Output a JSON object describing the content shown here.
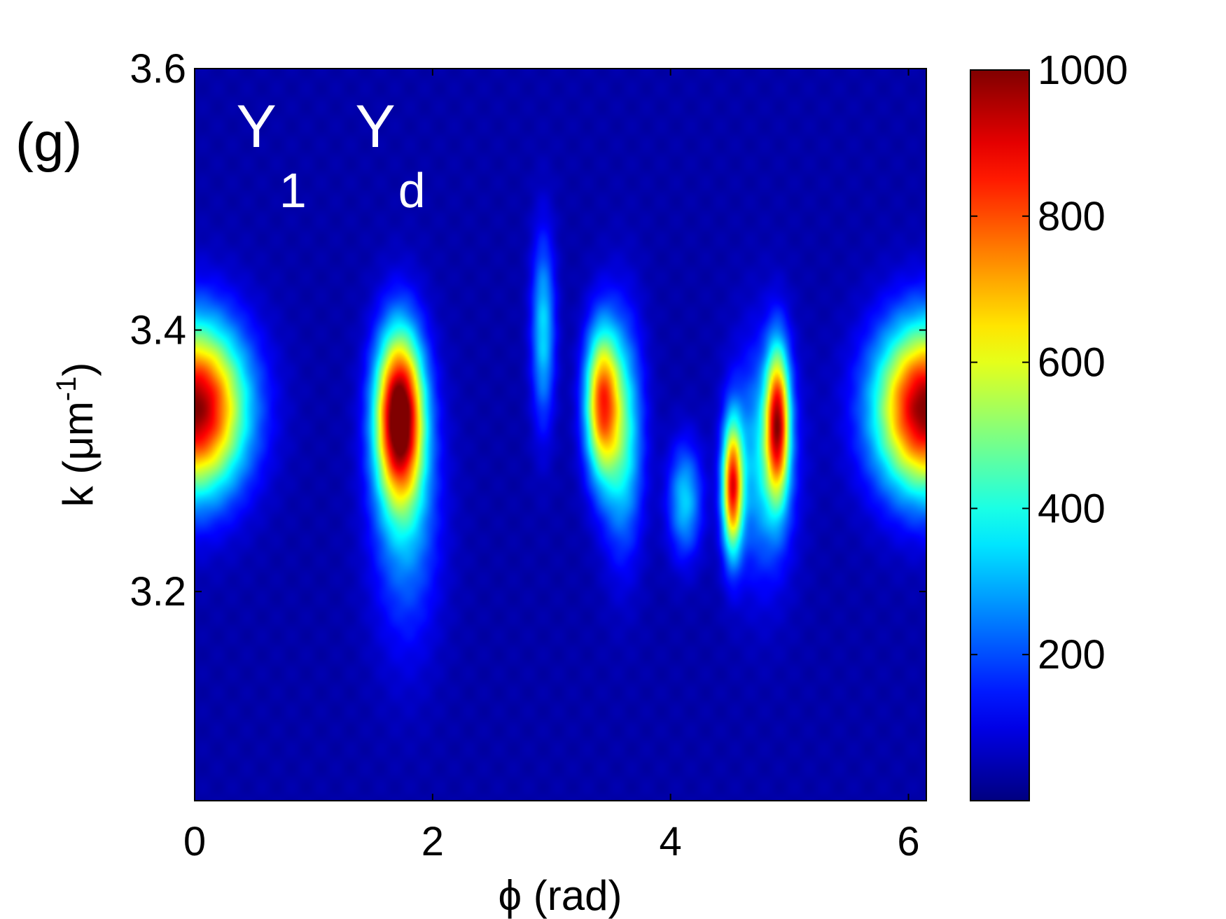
{
  "panel_label": "(g)",
  "chart_data": {
    "type": "heatmap",
    "xlabel": "ϕ (rad)",
    "ylabel": "k (μm-1)",
    "ylabel_parts": {
      "prefix": "k (μm",
      "superscript": "-1",
      "suffix": ")"
    },
    "xlim": [
      0,
      6.15
    ],
    "ylim": [
      3.04,
      3.6
    ],
    "xticks": [
      0,
      2,
      4,
      6
    ],
    "xtick_labels": [
      "0",
      "2",
      "4",
      "6"
    ],
    "yticks": [
      3.2,
      3.4,
      3.6
    ],
    "ytick_labels": [
      "3.2",
      "3.4",
      "3.6"
    ],
    "colorbar": {
      "colormap": "jet",
      "range": [
        0,
        1000
      ],
      "ticks": [
        200,
        400,
        600,
        800,
        1000
      ],
      "tick_labels": [
        "200",
        "400",
        "600",
        "800",
        "1000"
      ]
    },
    "background_value": 40,
    "peaks": [
      {
        "phi": 0.0,
        "k": 3.34,
        "amplitude": 960,
        "sigma_phi": 0.3,
        "sigma_k": 0.045
      },
      {
        "phi": 6.15,
        "k": 3.34,
        "amplitude": 960,
        "sigma_phi": 0.3,
        "sigma_k": 0.045
      },
      {
        "phi": 1.72,
        "k": 3.335,
        "amplitude": 980,
        "sigma_phi": 0.14,
        "sigma_k": 0.045
      },
      {
        "phi": 1.78,
        "k": 3.26,
        "amplitude": 230,
        "sigma_phi": 0.2,
        "sigma_k": 0.07
      },
      {
        "phi": 3.42,
        "k": 3.345,
        "amplitude": 700,
        "sigma_phi": 0.1,
        "sigma_k": 0.04
      },
      {
        "phi": 3.6,
        "k": 3.32,
        "amplitude": 360,
        "sigma_phi": 0.12,
        "sigma_k": 0.06
      },
      {
        "phi": 2.93,
        "k": 3.4,
        "amplitude": 300,
        "sigma_phi": 0.07,
        "sigma_k": 0.05
      },
      {
        "phi": 4.52,
        "k": 3.28,
        "amplitude": 760,
        "sigma_phi": 0.06,
        "sigma_k": 0.035
      },
      {
        "phi": 4.9,
        "k": 3.33,
        "amplitude": 740,
        "sigma_phi": 0.07,
        "sigma_k": 0.04
      },
      {
        "phi": 4.12,
        "k": 3.27,
        "amplitude": 290,
        "sigma_phi": 0.1,
        "sigma_k": 0.03
      },
      {
        "phi": 4.78,
        "k": 3.3,
        "amplitude": 300,
        "sigma_phi": 0.18,
        "sigma_k": 0.06
      }
    ],
    "annotations": [
      {
        "base": "Y",
        "subscript": "1",
        "phi": 0.35,
        "k": 3.54
      },
      {
        "base": "Y",
        "subscript": "d",
        "phi": 1.35,
        "k": 3.54
      }
    ]
  }
}
